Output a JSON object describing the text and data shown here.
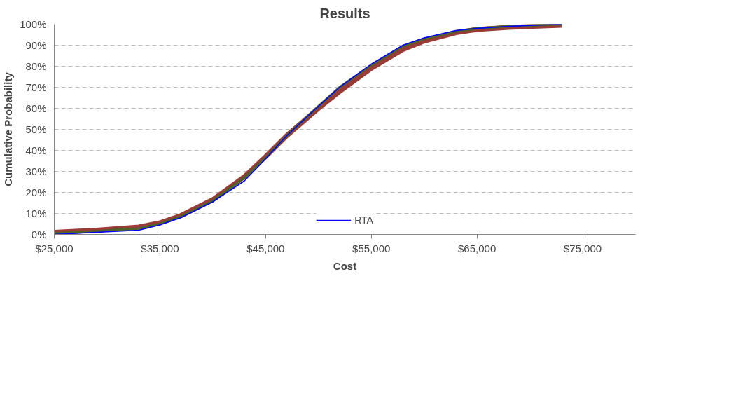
{
  "chart_data": {
    "type": "line",
    "title": "Results",
    "xlabel": "Cost",
    "ylabel": "Cumulative Probability",
    "xlim": [
      25000,
      80000
    ],
    "ylim": [
      0,
      1
    ],
    "xticks": [
      {
        "value": 25000,
        "label": "$25,000"
      },
      {
        "value": 35000,
        "label": "$35,000"
      },
      {
        "value": 45000,
        "label": "$45,000"
      },
      {
        "value": 55000,
        "label": "$55,000"
      },
      {
        "value": 65000,
        "label": "$65,000"
      },
      {
        "value": 75000,
        "label": "$75,000"
      }
    ],
    "yticks": [
      {
        "value": 0,
        "label": "0%"
      },
      {
        "value": 0.1,
        "label": "10%"
      },
      {
        "value": 0.2,
        "label": "20%"
      },
      {
        "value": 0.3,
        "label": "30%"
      },
      {
        "value": 0.4,
        "label": "40%"
      },
      {
        "value": 0.5,
        "label": "50%"
      },
      {
        "value": 0.6,
        "label": "60%"
      },
      {
        "value": 0.7,
        "label": "70%"
      },
      {
        "value": 0.8,
        "label": "80%"
      },
      {
        "value": 0.9,
        "label": "90%"
      },
      {
        "value": 1,
        "label": "100%"
      }
    ],
    "grid": "y",
    "legend": "bottom",
    "marker": "none",
    "line_style": "solid",
    "series": [
      {
        "color": "#9b3b38",
        "x": [
          25000,
          29000,
          33000,
          35000,
          37000,
          40000,
          43000,
          45000,
          47000,
          50000,
          52000,
          55000,
          58000,
          60000,
          63000,
          65000,
          68000,
          73000
        ],
        "values": [
          0.01,
          0.02,
          0.035,
          0.055,
          0.09,
          0.165,
          0.275,
          0.37,
          0.47,
          0.6,
          0.68,
          0.79,
          0.88,
          0.92,
          0.96,
          0.975,
          0.985,
          0.995
        ]
      },
      {
        "name": "RTA",
        "color": "#0000ff",
        "x": [
          25000,
          29000,
          33000,
          35000,
          37000,
          40000,
          43000,
          45000,
          47000,
          50000,
          52000,
          55000,
          58000,
          60000,
          63000,
          65000,
          68000,
          73000
        ],
        "values": [
          0.0,
          0.01,
          0.02,
          0.045,
          0.08,
          0.155,
          0.255,
          0.36,
          0.47,
          0.61,
          0.7,
          0.81,
          0.9,
          0.935,
          0.97,
          0.98,
          0.99,
          1.0
        ]
      },
      {
        "color": "#4f6228",
        "x": [
          25000,
          29000,
          33000,
          35000,
          37000,
          40000,
          43000,
          45000,
          47000,
          50000,
          52000,
          55000,
          58000,
          60000,
          63000,
          65000,
          68000,
          73000
        ],
        "values": [
          0.005,
          0.015,
          0.028,
          0.05,
          0.085,
          0.16,
          0.27,
          0.365,
          0.47,
          0.61,
          0.7,
          0.805,
          0.895,
          0.93,
          0.965,
          0.98,
          0.99,
          1.0
        ]
      }
    ]
  }
}
